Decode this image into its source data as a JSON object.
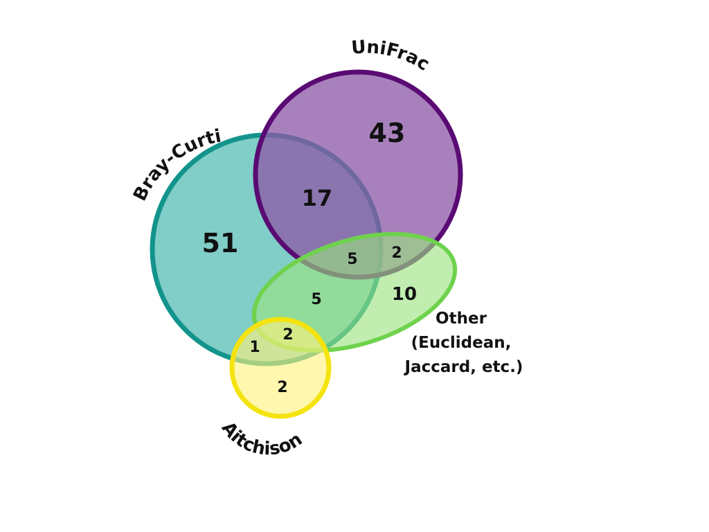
{
  "sets": {
    "bray_curtis": {
      "label": "Bray-Curtis",
      "fill": "#5dbfb7",
      "stroke": "#12948c"
    },
    "unifrac": {
      "label": "UniFrac",
      "fill": "#8d5aa7",
      "stroke": "#5a0b73"
    },
    "other": {
      "label_lines": [
        "Other",
        "(Euclidean,",
        "Jaccard, etc.)"
      ],
      "fill": "#9be37f",
      "stroke": "#6fd24c"
    },
    "aitchison": {
      "label": "Aitchison",
      "fill": "#fff27a",
      "stroke": "#f5e30f"
    }
  },
  "regions": {
    "bray_curtis_only": "51",
    "unifrac_only": "43",
    "bray_curtis_unifrac": "17",
    "bray_curtis_unifrac_other": "5",
    "unifrac_other": "2",
    "other_only": "10",
    "bray_curtis_other": "5",
    "bray_curtis_other_aitchison": "2",
    "bray_curtis_aitchison": "1",
    "aitchison_only": "2"
  }
}
